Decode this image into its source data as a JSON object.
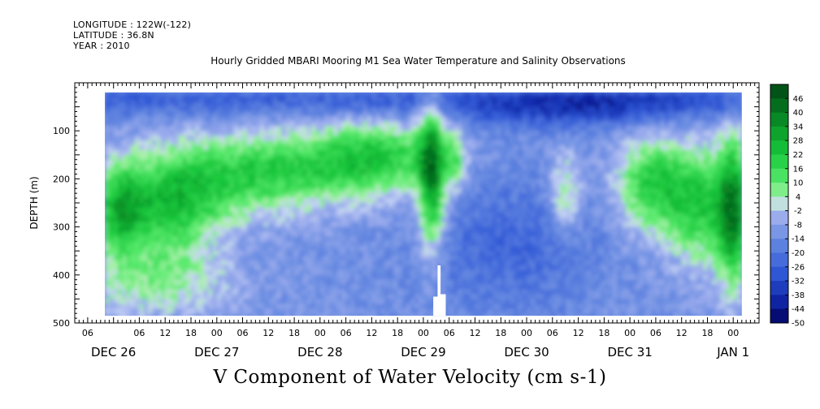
{
  "header": {
    "longitude": "LONGITUDE : 122W(-122)",
    "latitude": "LATITUDE : 36.8N",
    "year": "YEAR : 2010",
    "title": "Hourly Gridded MBARI Mooring M1 Sea Water Temperature and Salinity Observations"
  },
  "chart_data": {
    "type": "heatmap",
    "title": "Hourly Gridded MBARI Mooring M1 Sea Water Temperature and Salinity Observations",
    "xlabel": "V Component of Water Velocity (cm s-1)",
    "ylabel": "DEPTH (m)",
    "x_unit": "hours since Dec 26 00:00",
    "xlim": [
      -9,
      150
    ],
    "data_x_range": [
      -2,
      146
    ],
    "ylim": [
      500,
      0
    ],
    "data_y_range": [
      20,
      485
    ],
    "yticks": [
      100,
      200,
      300,
      400,
      500
    ],
    "ytick_labels": [
      "100",
      "200",
      "300",
      "400",
      "500"
    ],
    "hour_ticks": [
      {
        "h": -6,
        "label": "06"
      },
      {
        "h": 0,
        "label": ""
      },
      {
        "h": 6,
        "label": "06"
      },
      {
        "h": 12,
        "label": "12"
      },
      {
        "h": 18,
        "label": "18"
      },
      {
        "h": 24,
        "label": "00"
      },
      {
        "h": 30,
        "label": "06"
      },
      {
        "h": 36,
        "label": "12"
      },
      {
        "h": 42,
        "label": "18"
      },
      {
        "h": 48,
        "label": "00"
      },
      {
        "h": 54,
        "label": "06"
      },
      {
        "h": 60,
        "label": "12"
      },
      {
        "h": 66,
        "label": "18"
      },
      {
        "h": 72,
        "label": "00"
      },
      {
        "h": 78,
        "label": "06"
      },
      {
        "h": 84,
        "label": "12"
      },
      {
        "h": 90,
        "label": "18"
      },
      {
        "h": 96,
        "label": "00"
      },
      {
        "h": 102,
        "label": "06"
      },
      {
        "h": 108,
        "label": "12"
      },
      {
        "h": 114,
        "label": "18"
      },
      {
        "h": 120,
        "label": "00"
      },
      {
        "h": 126,
        "label": "06"
      },
      {
        "h": 132,
        "label": "12"
      },
      {
        "h": 138,
        "label": "18"
      },
      {
        "h": 144,
        "label": "00"
      }
    ],
    "date_labels": [
      {
        "h": 0,
        "label": "DEC 26"
      },
      {
        "h": 24,
        "label": "DEC 27"
      },
      {
        "h": 48,
        "label": "DEC 28"
      },
      {
        "h": 72,
        "label": "DEC 29"
      },
      {
        "h": 96,
        "label": "DEC 30"
      },
      {
        "h": 120,
        "label": "DEC 31"
      },
      {
        "h": 144,
        "label": "JAN  1"
      }
    ],
    "colorbar": {
      "min": -50,
      "max": 52,
      "levels": [
        52,
        46,
        40,
        34,
        28,
        22,
        16,
        10,
        4,
        -2,
        -8,
        -14,
        -20,
        -26,
        -32,
        -38,
        -44,
        -50
      ],
      "labels": [
        "46",
        "40",
        "34",
        "28",
        "22",
        "16",
        "10",
        "4",
        "-2",
        "-8",
        "-14",
        "-20",
        "-26",
        "-32",
        "-38",
        "-44",
        "-50"
      ]
    },
    "features": [
      {
        "description": "positive band",
        "h": 1.5,
        "depth": 270,
        "value": 20
      },
      {
        "description": "positive band",
        "h": 14,
        "depth": 280,
        "value": 18
      },
      {
        "description": "positive core",
        "h": 74,
        "depth": 170,
        "value": 26
      },
      {
        "description": "positive plume",
        "h": 80,
        "depth": 160,
        "value": 12
      },
      {
        "description": "positive patch",
        "h": 126,
        "depth": 200,
        "value": 16
      },
      {
        "description": "positive patch",
        "h": 138,
        "depth": 260,
        "value": 18
      },
      {
        "description": "positive patch",
        "h": 144,
        "depth": 260,
        "value": 20
      },
      {
        "description": "negative surface",
        "h": 108,
        "depth": 50,
        "value": -36
      },
      {
        "description": "negative column",
        "h": 92,
        "depth": 360,
        "value": -24
      }
    ]
  }
}
